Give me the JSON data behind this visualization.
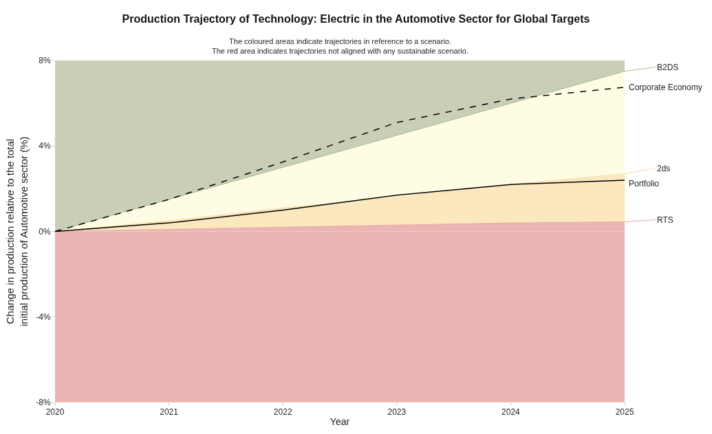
{
  "chart_data": {
    "type": "area",
    "title": "Production Trajectory of Technology: Electric in the Automotive Sector for Global Targets",
    "subtitle": "The coloured areas indicate trajectories in reference to a scenario.\nThe red area indicates trajectories not aligned with any sustainable scenario.",
    "xlabel": "Year",
    "ylabel": "Change in production relative to the total\ninitial production of Automotive sector (%)",
    "x": [
      2020,
      2021,
      2022,
      2023,
      2024,
      2025
    ],
    "series": [
      {
        "name": "RTS",
        "type": "area",
        "color": "#ebb5b3",
        "values": [
          0,
          0.1,
          0.2,
          0.3,
          0.4,
          0.45
        ]
      },
      {
        "name": "2ds",
        "type": "area",
        "color": "#fbe8bf",
        "values": [
          0,
          0.5,
          1.1,
          1.6,
          2.2,
          2.7
        ]
      },
      {
        "name": "B2DS",
        "type": "area",
        "color": "#fefde4",
        "values": [
          0,
          1.5,
          3.0,
          4.5,
          6.0,
          7.5
        ]
      },
      {
        "color": "#c8cfb6",
        "values": [
          8,
          8,
          8,
          8,
          8,
          8
        ]
      },
      {
        "name": "Portfolio",
        "type": "line",
        "color": "#000000",
        "line_style": "solid",
        "values": [
          0,
          0.4,
          1.0,
          1.7,
          2.2,
          2.4
        ]
      },
      {
        "name": "Corporate Economy",
        "type": "line",
        "color": "#000000",
        "line_style": "dashed",
        "values": [
          0,
          1.5,
          3.25,
          5.1,
          6.2,
          6.75
        ]
      }
    ],
    "xlim": [
      2020,
      2025
    ],
    "xticks": [
      2020,
      2021,
      2022,
      2023,
      2024,
      2025
    ],
    "ylim": [
      -8,
      8
    ],
    "yticks": [
      {
        "value": -8,
        "label": "-8%"
      },
      {
        "value": -4,
        "label": "-4%"
      },
      {
        "value": 0,
        "label": "0%"
      },
      {
        "value": 4,
        "label": "4%"
      },
      {
        "value": 8,
        "label": "8%"
      }
    ],
    "bands": [
      {
        "axis": "y",
        "from": -8,
        "to": 0,
        "color": "#ebb5b3"
      }
    ],
    "grid": false,
    "legend": "right",
    "marker": "none"
  }
}
